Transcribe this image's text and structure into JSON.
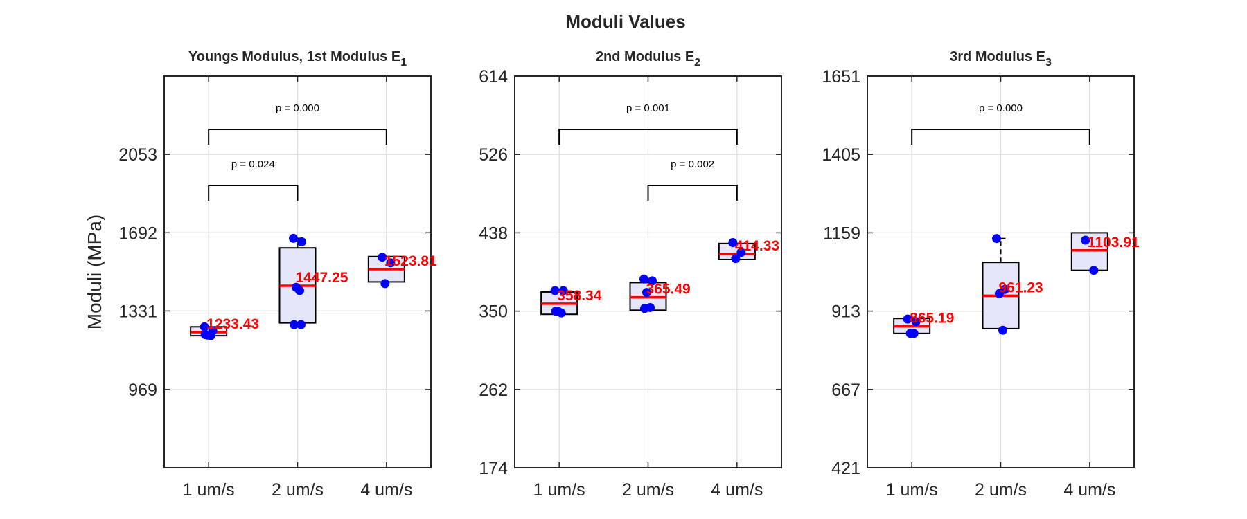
{
  "title": "Moduli Values",
  "chart_data": [
    {
      "type": "box",
      "title": "Youngs Modulus, 1st Modulus E",
      "title_subscript": "1",
      "ylabel": "Moduli (MPa)",
      "categories": [
        "1 um/s",
        "2 um/s",
        "4 um/s"
      ],
      "ylim": [
        608,
        2414
      ],
      "yticks": [
        969,
        1331,
        1692,
        2053
      ],
      "grid": true,
      "box_color": "#e6e6fa",
      "median_color": "#ff0000",
      "point_color": "#0000ff",
      "boxes": [
        {
          "q1": 1217,
          "median": 1233.43,
          "q3": 1258,
          "points": [
            1258,
            1240,
            1220,
            1217,
            1222
          ]
        },
        {
          "q1": 1276,
          "median": 1447.25,
          "q3": 1622,
          "whisker_high": 1666,
          "points": [
            1666,
            1650,
            1440,
            1425,
            1268,
            1268
          ]
        },
        {
          "q1": 1465,
          "median": 1523.81,
          "q3": 1582,
          "points": [
            1579,
            1553,
            1457
          ]
        }
      ],
      "brackets": [
        {
          "between": [
            0,
            1
          ],
          "label": "p = 0.024"
        },
        {
          "between": [
            0,
            2
          ],
          "label": "p = 0.000"
        }
      ]
    },
    {
      "type": "box",
      "title": "2nd Modulus E",
      "title_subscript": "2",
      "categories": [
        "1 um/s",
        "2 um/s",
        "4 um/s"
      ],
      "ylim": [
        174,
        614
      ],
      "yticks": [
        174,
        262,
        350,
        438,
        526,
        614
      ],
      "grid": true,
      "box_color": "#e6e6fa",
      "median_color": "#ff0000",
      "point_color": "#0000ff",
      "boxes": [
        {
          "q1": 346.4,
          "median": 358.34,
          "q3": 371.5,
          "points": [
            373,
            373,
            350,
            348,
            350
          ]
        },
        {
          "q1": 351,
          "median": 365.49,
          "q3": 382,
          "points": [
            386,
            384,
            371,
            354,
            353
          ]
        },
        {
          "q1": 408,
          "median": 414.33,
          "q3": 426,
          "points": [
            427,
            416,
            409
          ]
        }
      ],
      "brackets": [
        {
          "between": [
            0,
            2
          ],
          "label": "p = 0.001"
        },
        {
          "between": [
            1,
            2
          ],
          "label": "p = 0.002"
        }
      ]
    },
    {
      "type": "box",
      "title": "3rd Modulus E",
      "title_subscript": "3",
      "categories": [
        "1 um/s",
        "2 um/s",
        "4 um/s"
      ],
      "ylim": [
        421,
        1651
      ],
      "yticks": [
        421,
        667,
        913,
        1159,
        1405,
        1651
      ],
      "grid": true,
      "box_color": "#e6e6fa",
      "median_color": "#ff0000",
      "point_color": "#0000ff",
      "boxes": [
        {
          "q1": 843,
          "median": 865.19,
          "q3": 890,
          "points": [
            888,
            880,
            843,
            843
          ]
        },
        {
          "q1": 858,
          "median": 961.23,
          "q3": 1066,
          "whisker_high": 1141,
          "points": [
            1141,
            981,
            968,
            853
          ]
        },
        {
          "q1": 1041,
          "median": 1103.91,
          "q3": 1159,
          "points": [
            1136,
            1041
          ]
        }
      ],
      "brackets": [
        {
          "between": [
            0,
            2
          ],
          "label": "p = 0.000"
        }
      ]
    }
  ]
}
